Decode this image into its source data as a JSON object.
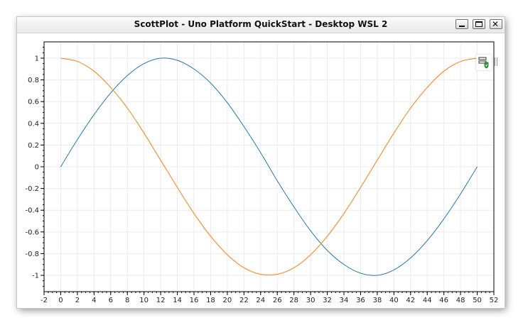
{
  "window": {
    "title": "ScottPlot - Uno Platform QuickStart - Desktop WSL 2",
    "minimize_icon": "minimize-icon",
    "maximize_icon": "maximize-icon",
    "close_icon": "close-icon",
    "close_glyph": "✕"
  },
  "toolbar": {
    "settings_icon": "settings-shield-icon",
    "grip_icon": "panel-grip-icon"
  },
  "chart_data": {
    "type": "line",
    "title": "",
    "xlabel": "",
    "ylabel": "",
    "xlim": [
      -2,
      52
    ],
    "ylim": [
      -1.15,
      1.15
    ],
    "grid": true,
    "x_ticks": [
      -2,
      0,
      2,
      4,
      6,
      8,
      10,
      12,
      14,
      16,
      18,
      20,
      22,
      24,
      26,
      28,
      30,
      32,
      34,
      36,
      38,
      40,
      42,
      44,
      46,
      48,
      50,
      52
    ],
    "x_tick_labels": [
      "-2",
      "0",
      "2",
      "4",
      "6",
      "8",
      "10",
      "12",
      "14",
      "16",
      "18",
      "20",
      "22",
      "24",
      "26",
      "28",
      "30",
      "32",
      "34",
      "36",
      "38",
      "40",
      "42",
      "44",
      "46",
      "48",
      "50",
      "52"
    ],
    "y_ticks": [
      1,
      0.8,
      0.6,
      0.4,
      0.2,
      0,
      -0.2,
      -0.4,
      -0.6,
      -0.8,
      -1
    ],
    "y_tick_labels": [
      "1",
      "0.8",
      "0.6",
      "0.4",
      "0.2",
      "0",
      "-0.2",
      "-0.4",
      "-0.6",
      "-0.8",
      "-1"
    ],
    "series": [
      {
        "color": "#1f77b4",
        "x": [
          0,
          2,
          4,
          6,
          8,
          10,
          12,
          14,
          16,
          18,
          20,
          22,
          24,
          26,
          28,
          30,
          32,
          34,
          36,
          38,
          40,
          42,
          44,
          46,
          48,
          50
        ],
        "y": [
          0,
          0.25,
          0.48,
          0.68,
          0.84,
          0.95,
          1.0,
          0.98,
          0.9,
          0.77,
          0.59,
          0.37,
          0.13,
          -0.13,
          -0.37,
          -0.59,
          -0.77,
          -0.9,
          -0.98,
          -1.0,
          -0.95,
          -0.84,
          -0.68,
          -0.48,
          -0.25,
          0
        ]
      },
      {
        "color": "#ff7f0e",
        "x": [
          0,
          2,
          4,
          6,
          8,
          10,
          12,
          14,
          16,
          18,
          20,
          22,
          24,
          26,
          28,
          30,
          32,
          34,
          36,
          38,
          40,
          42,
          44,
          46,
          48,
          50
        ],
        "y": [
          1.0,
          0.97,
          0.88,
          0.73,
          0.54,
          0.31,
          0.06,
          -0.19,
          -0.43,
          -0.64,
          -0.81,
          -0.93,
          -0.99,
          -0.99,
          -0.93,
          -0.81,
          -0.64,
          -0.43,
          -0.19,
          0.06,
          0.31,
          0.54,
          0.73,
          0.88,
          0.97,
          1.0
        ]
      }
    ]
  }
}
